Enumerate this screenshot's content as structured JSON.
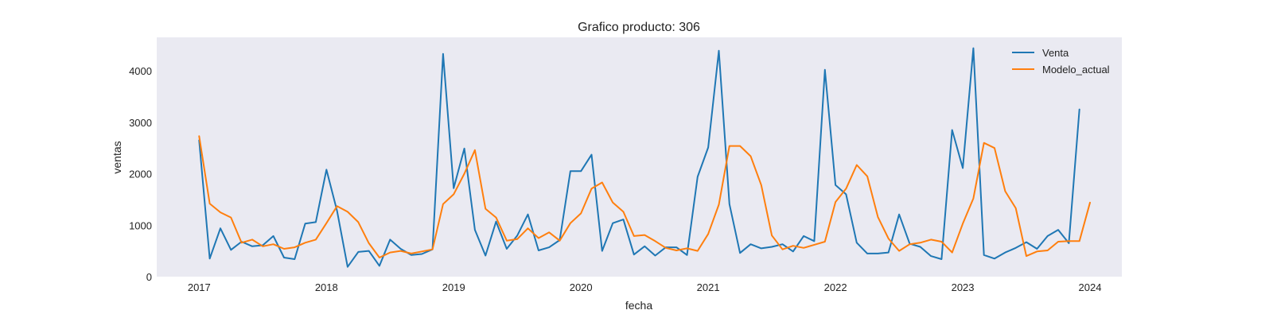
{
  "chart_data": {
    "type": "line",
    "title": "Grafico producto: 306",
    "xlabel": "fecha",
    "ylabel": "ventas",
    "x_start": "2017-01",
    "x_end": "2023-12",
    "xlim": [
      "2016-09",
      "2024-04"
    ],
    "ylim": [
      0,
      4650
    ],
    "x_ticks": [
      "2017",
      "2018",
      "2019",
      "2020",
      "2021",
      "2022",
      "2023",
      "2024"
    ],
    "y_ticks": [
      0,
      1000,
      2000,
      3000,
      4000
    ],
    "grid": false,
    "background": "#eaeaf2",
    "legend_position": "top-right",
    "series": [
      {
        "name": "Venta",
        "color": "#1f77b4",
        "values": [
          2650,
          350,
          940,
          520,
          680,
          590,
          610,
          790,
          370,
          340,
          1030,
          1060,
          2080,
          1280,
          190,
          480,
          500,
          210,
          720,
          540,
          420,
          440,
          530,
          4330,
          1720,
          2490,
          910,
          410,
          1070,
          540,
          800,
          1210,
          510,
          570,
          710,
          2050,
          2050,
          2370,
          500,
          1040,
          1110,
          430,
          590,
          410,
          570,
          570,
          420,
          1940,
          2510,
          4390,
          1410,
          460,
          630,
          550,
          580,
          630,
          490,
          790,
          690,
          4020,
          1780,
          1600,
          660,
          450,
          450,
          470,
          1210,
          640,
          580,
          400,
          340,
          2850,
          2110,
          4440,
          420,
          350,
          470,
          560,
          670,
          540,
          790,
          910,
          650,
          3250
        ]
      },
      {
        "name": "Modelo_actual",
        "color": "#ff7f0e",
        "values": [
          2730,
          1420,
          1250,
          1150,
          660,
          720,
          590,
          630,
          540,
          570,
          660,
          720,
          1040,
          1370,
          1260,
          1060,
          650,
          370,
          470,
          500,
          450,
          490,
          530,
          1410,
          1600,
          2000,
          2460,
          1320,
          1150,
          700,
          730,
          940,
          750,
          860,
          700,
          1040,
          1230,
          1710,
          1830,
          1440,
          1260,
          790,
          810,
          690,
          560,
          510,
          550,
          500,
          830,
          1400,
          2540,
          2540,
          2340,
          1780,
          800,
          530,
          600,
          560,
          620,
          680,
          1450,
          1710,
          2170,
          1950,
          1160,
          740,
          500,
          630,
          660,
          720,
          680,
          470,
          1030,
          1520,
          2600,
          2500,
          1660,
          1330,
          400,
          490,
          510,
          680,
          690,
          690,
          1440
        ]
      }
    ]
  }
}
